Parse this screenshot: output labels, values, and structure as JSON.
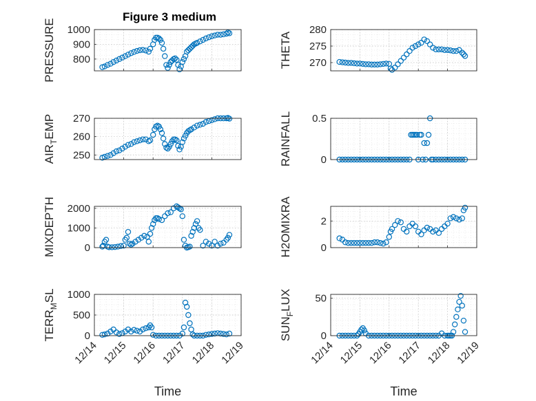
{
  "title": "Figure 3 medium",
  "chart_data": [
    {
      "type": "scatter",
      "ylabel": "PRESSURE",
      "ylim": [
        720,
        1000
      ],
      "yticks": [
        800,
        900,
        1000
      ],
      "xlim": [
        0,
        5
      ],
      "show_xticks": false,
      "x": [
        0.27,
        0.35,
        0.45,
        0.55,
        0.65,
        0.75,
        0.85,
        0.95,
        1.05,
        1.15,
        1.25,
        1.35,
        1.45,
        1.55,
        1.65,
        1.75,
        1.85,
        1.9,
        2.0,
        2.05,
        2.1,
        2.15,
        2.2,
        2.25,
        2.3,
        2.35,
        2.4,
        2.45,
        2.5,
        2.55,
        2.6,
        2.65,
        2.7,
        2.75,
        2.8,
        2.85,
        2.9,
        2.95,
        3.0,
        3.05,
        3.1,
        3.15,
        3.2,
        3.25,
        3.3,
        3.35,
        3.4,
        3.45,
        3.5,
        3.6,
        3.7,
        3.8,
        3.9,
        4.0,
        4.1,
        4.2,
        4.3,
        4.4,
        4.5,
        4.55,
        4.6
      ],
      "values": [
        745,
        750,
        760,
        768,
        780,
        790,
        800,
        810,
        820,
        830,
        840,
        848,
        855,
        860,
        862,
        858,
        850,
        870,
        900,
        930,
        945,
        945,
        940,
        930,
        910,
        870,
        820,
        760,
        740,
        760,
        780,
        790,
        800,
        805,
        795,
        760,
        730,
        750,
        780,
        800,
        820,
        850,
        860,
        870,
        880,
        890,
        900,
        905,
        910,
        920,
        930,
        940,
        948,
        955,
        960,
        965,
        965,
        968,
        972,
        980,
        975
      ]
    },
    {
      "type": "scatter",
      "ylabel": "THETA",
      "ylim": [
        267.5,
        280
      ],
      "yticks": [
        270,
        275,
        280
      ],
      "xlim": [
        0,
        5
      ],
      "show_xticks": false,
      "x": [
        0.3,
        0.4,
        0.5,
        0.6,
        0.7,
        0.8,
        0.9,
        1.0,
        1.1,
        1.2,
        1.3,
        1.4,
        1.5,
        1.6,
        1.7,
        1.8,
        1.9,
        2.0,
        2.05,
        2.1,
        2.2,
        2.3,
        2.4,
        2.5,
        2.6,
        2.7,
        2.8,
        2.9,
        3.0,
        3.1,
        3.2,
        3.3,
        3.4,
        3.5,
        3.6,
        3.7,
        3.8,
        3.9,
        4.0,
        4.1,
        4.2,
        4.3,
        4.4,
        4.5,
        4.55,
        4.6
      ],
      "values": [
        270.2,
        270.1,
        270.0,
        269.9,
        269.9,
        269.8,
        269.7,
        269.7,
        269.6,
        269.5,
        269.5,
        269.4,
        269.4,
        269.4,
        269.5,
        269.6,
        269.7,
        269.6,
        268.2,
        267.8,
        268.5,
        269.5,
        270.5,
        271.5,
        272.5,
        273.5,
        274.5,
        275.0,
        275.5,
        276.0,
        277.0,
        276.5,
        275.5,
        274.5,
        274.0,
        274.0,
        274.0,
        273.8,
        273.8,
        273.7,
        273.5,
        273.5,
        273.8,
        273.0,
        272.5,
        272.0
      ]
    },
    {
      "type": "scatter",
      "ylabel": "AIR_TEMP",
      "ylim": [
        247.5,
        270
      ],
      "yticks": [
        250,
        260,
        270
      ],
      "xlim": [
        0,
        5
      ],
      "show_xticks": false,
      "x": [
        0.27,
        0.35,
        0.45,
        0.55,
        0.65,
        0.75,
        0.85,
        0.95,
        1.05,
        1.15,
        1.25,
        1.35,
        1.45,
        1.55,
        1.65,
        1.75,
        1.85,
        1.9,
        2.0,
        2.05,
        2.1,
        2.15,
        2.2,
        2.25,
        2.3,
        2.35,
        2.4,
        2.45,
        2.5,
        2.55,
        2.6,
        2.65,
        2.7,
        2.75,
        2.8,
        2.85,
        2.9,
        2.95,
        3.0,
        3.05,
        3.1,
        3.15,
        3.2,
        3.25,
        3.3,
        3.4,
        3.5,
        3.6,
        3.7,
        3.8,
        3.9,
        4.0,
        4.1,
        4.2,
        4.3,
        4.4,
        4.5,
        4.55,
        4.6
      ],
      "values": [
        248.5,
        249,
        249.5,
        250,
        251,
        252,
        252.5,
        253.5,
        254.5,
        255.5,
        256,
        257,
        257.5,
        258,
        258.5,
        258.5,
        257.5,
        258,
        261,
        264,
        265.5,
        266,
        265.5,
        264,
        262,
        259,
        256,
        254,
        253.5,
        254.5,
        256,
        257.5,
        258.5,
        258.5,
        258,
        255,
        253,
        254.5,
        257,
        259,
        260.5,
        262,
        263,
        263.5,
        264,
        265,
        266,
        266.5,
        267,
        268,
        268.5,
        269,
        269.5,
        270,
        270,
        270,
        270,
        270.2,
        269.8
      ]
    },
    {
      "type": "scatter",
      "ylabel": "RAINFALL",
      "ylim": [
        0,
        0.5
      ],
      "yticks": [
        0,
        0.5
      ],
      "xlim": [
        0,
        5
      ],
      "show_xticks": false,
      "x": [
        0.3,
        0.4,
        0.5,
        0.6,
        0.7,
        0.8,
        0.9,
        1.0,
        1.1,
        1.2,
        1.3,
        1.4,
        1.5,
        1.6,
        1.7,
        1.8,
        1.9,
        2.0,
        2.1,
        2.2,
        2.3,
        2.4,
        2.5,
        2.6,
        2.7,
        2.75,
        2.8,
        2.85,
        2.9,
        2.95,
        3.0,
        3.05,
        3.1,
        3.15,
        3.2,
        3.25,
        3.3,
        3.35,
        3.4,
        3.45,
        3.5,
        3.6,
        3.7,
        3.8,
        3.9,
        4.0,
        4.1,
        4.2,
        4.3,
        4.4,
        4.5,
        4.6
      ],
      "values": [
        0,
        0,
        0,
        0,
        0,
        0,
        0,
        0,
        0,
        0,
        0,
        0,
        0,
        0,
        0,
        0,
        0,
        0,
        0,
        0,
        0,
        0,
        0,
        0,
        0,
        0.3,
        0.3,
        0.3,
        0.3,
        0.3,
        0,
        0.3,
        0.3,
        0,
        0.2,
        0,
        0.2,
        0.3,
        0.5,
        0,
        0,
        0,
        0,
        0,
        0,
        0,
        0,
        0,
        0,
        0,
        0,
        0
      ]
    },
    {
      "type": "scatter",
      "ylabel": "MIXDEPTH",
      "ylim": [
        0,
        2100
      ],
      "yticks": [
        0,
        1000,
        2000
      ],
      "xlim": [
        0,
        5
      ],
      "show_xticks": false,
      "x": [
        0.27,
        0.3,
        0.35,
        0.4,
        0.45,
        0.5,
        0.6,
        0.7,
        0.8,
        0.9,
        1.0,
        1.05,
        1.1,
        1.15,
        1.2,
        1.25,
        1.3,
        1.4,
        1.5,
        1.6,
        1.7,
        1.8,
        1.85,
        1.9,
        1.95,
        2.0,
        2.05,
        2.1,
        2.15,
        2.2,
        2.3,
        2.4,
        2.5,
        2.6,
        2.7,
        2.8,
        2.85,
        2.9,
        2.95,
        3.0,
        3.05,
        3.1,
        3.15,
        3.2,
        3.25,
        3.3,
        3.35,
        3.4,
        3.45,
        3.5,
        3.55,
        3.6,
        3.7,
        3.8,
        3.9,
        4.0,
        4.1,
        4.2,
        4.3,
        4.4,
        4.5,
        4.55,
        4.6
      ],
      "values": [
        50,
        100,
        300,
        400,
        50,
        20,
        20,
        30,
        50,
        80,
        100,
        400,
        500,
        800,
        200,
        150,
        200,
        300,
        400,
        500,
        600,
        550,
        300,
        700,
        1000,
        1200,
        1400,
        1500,
        1500,
        1450,
        1400,
        1600,
        1750,
        1800,
        2000,
        2100,
        2050,
        2000,
        1950,
        1600,
        400,
        100,
        0,
        20,
        50,
        600,
        800,
        1000,
        1200,
        1350,
        1000,
        900,
        100,
        300,
        200,
        100,
        300,
        100,
        200,
        250,
        400,
        500,
        650
      ]
    },
    {
      "type": "scatter",
      "ylabel": "H2OMIXRA",
      "ylim": [
        0,
        3.1
      ],
      "yticks": [
        0,
        2
      ],
      "xlim": [
        0,
        5
      ],
      "show_xticks": false,
      "x": [
        0.3,
        0.4,
        0.5,
        0.6,
        0.7,
        0.8,
        0.9,
        1.0,
        1.1,
        1.2,
        1.3,
        1.4,
        1.5,
        1.6,
        1.7,
        1.8,
        1.9,
        2.0,
        2.05,
        2.1,
        2.2,
        2.3,
        2.4,
        2.5,
        2.6,
        2.7,
        2.8,
        2.9,
        3.0,
        3.1,
        3.2,
        3.3,
        3.4,
        3.5,
        3.6,
        3.7,
        3.8,
        3.9,
        4.0,
        4.1,
        4.2,
        4.3,
        4.4,
        4.5,
        4.55,
        4.6
      ],
      "values": [
        0.7,
        0.6,
        0.4,
        0.35,
        0.35,
        0.35,
        0.35,
        0.35,
        0.35,
        0.35,
        0.35,
        0.35,
        0.4,
        0.4,
        0.35,
        0.3,
        0.4,
        0.8,
        1.2,
        1.4,
        1.7,
        2.0,
        1.9,
        1.4,
        1.2,
        1.6,
        1.8,
        1.6,
        1.2,
        1.0,
        1.3,
        1.5,
        1.4,
        1.2,
        1.3,
        1.1,
        1.4,
        1.6,
        1.8,
        2.2,
        2.3,
        2.2,
        2.1,
        2.2,
        2.8,
        3.0
      ]
    },
    {
      "type": "scatter",
      "ylabel": "TERR_MSL",
      "ylim": [
        0,
        1000
      ],
      "yticks": [
        0,
        500,
        1000
      ],
      "xlim": [
        0,
        5
      ],
      "show_xticks": true,
      "xticklabels": [
        "12/14",
        "12/15",
        "12/16",
        "12/17",
        "12/18",
        "12/19"
      ],
      "xlabel": "Time",
      "x": [
        0.27,
        0.35,
        0.45,
        0.55,
        0.65,
        0.75,
        0.85,
        0.95,
        1.05,
        1.15,
        1.25,
        1.35,
        1.45,
        1.55,
        1.65,
        1.75,
        1.85,
        1.9,
        1.95,
        2.0,
        2.1,
        2.2,
        2.3,
        2.4,
        2.5,
        2.6,
        2.7,
        2.8,
        2.9,
        3.0,
        3.05,
        3.1,
        3.15,
        3.2,
        3.25,
        3.3,
        3.35,
        3.4,
        3.5,
        3.6,
        3.7,
        3.8,
        3.9,
        4.0,
        4.1,
        4.2,
        4.3,
        4.4,
        4.5,
        4.6
      ],
      "values": [
        20,
        30,
        50,
        100,
        150,
        80,
        40,
        60,
        100,
        150,
        100,
        140,
        120,
        100,
        150,
        180,
        200,
        250,
        200,
        20,
        0,
        0,
        0,
        0,
        0,
        0,
        0,
        0,
        0,
        50,
        200,
        800,
        700,
        500,
        300,
        150,
        30,
        0,
        0,
        0,
        0,
        20,
        30,
        40,
        50,
        60,
        50,
        40,
        30,
        50
      ]
    },
    {
      "type": "scatter",
      "ylabel": "SUN_FLUX",
      "ylim": [
        0,
        55
      ],
      "yticks": [
        0,
        50
      ],
      "xlim": [
        0,
        5
      ],
      "show_xticks": true,
      "xticklabels": [
        "12/14",
        "12/15",
        "12/16",
        "12/17",
        "12/18",
        "12/19"
      ],
      "xlabel": "Time",
      "x": [
        0.3,
        0.4,
        0.5,
        0.6,
        0.7,
        0.8,
        0.9,
        0.95,
        1.0,
        1.05,
        1.1,
        1.15,
        1.2,
        1.3,
        1.4,
        1.5,
        1.6,
        1.7,
        1.8,
        1.9,
        2.0,
        2.1,
        2.2,
        2.3,
        2.4,
        2.5,
        2.6,
        2.7,
        2.8,
        2.9,
        3.0,
        3.1,
        3.2,
        3.3,
        3.4,
        3.5,
        3.6,
        3.7,
        3.8,
        3.9,
        4.0,
        4.05,
        4.1,
        4.15,
        4.2,
        4.25,
        4.3,
        4.35,
        4.4,
        4.45,
        4.5,
        4.55,
        4.6
      ],
      "values": [
        0,
        0,
        0,
        0,
        0,
        0,
        0,
        2,
        5,
        8,
        10,
        7,
        3,
        0,
        0,
        0,
        0,
        0,
        0,
        0,
        0,
        0,
        0,
        0,
        0,
        0,
        0,
        0,
        0,
        0,
        0,
        0,
        0,
        0,
        0,
        0,
        0,
        0,
        3,
        0,
        0,
        0,
        0,
        0,
        5,
        15,
        25,
        35,
        45,
        53,
        40,
        20,
        5
      ]
    }
  ]
}
